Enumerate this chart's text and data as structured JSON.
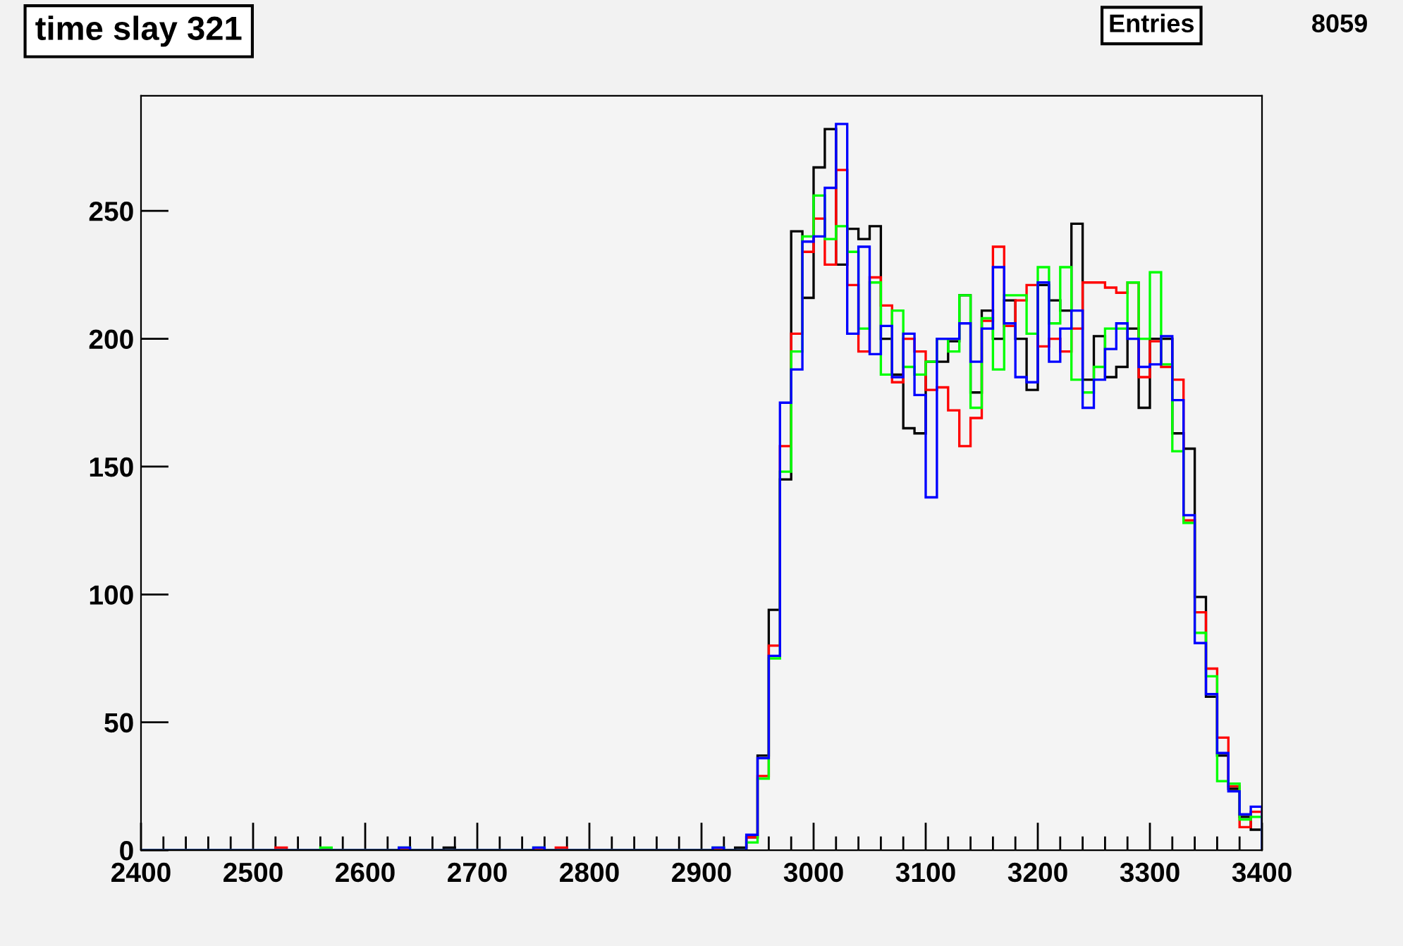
{
  "chart_data": {
    "type": "histogram",
    "title": "time slay 321",
    "annotations": [
      "Entries",
      "8059"
    ],
    "bins": [
      2400,
      2410,
      2420,
      2430,
      2440,
      2450,
      2460,
      2470,
      2480,
      2490,
      2500,
      2510,
      2520,
      2530,
      2540,
      2550,
      2560,
      2570,
      2580,
      2590,
      2600,
      2610,
      2620,
      2630,
      2640,
      2650,
      2660,
      2670,
      2680,
      2690,
      2700,
      2710,
      2720,
      2730,
      2740,
      2750,
      2760,
      2770,
      2780,
      2790,
      2800,
      2810,
      2820,
      2830,
      2840,
      2850,
      2860,
      2870,
      2880,
      2890,
      2900,
      2910,
      2920,
      2930,
      2940,
      2950,
      2960,
      2970,
      2980,
      2990,
      3000,
      3010,
      3020,
      3030,
      3040,
      3050,
      3060,
      3070,
      3080,
      3090,
      3100,
      3110,
      3120,
      3130,
      3140,
      3150,
      3160,
      3170,
      3180,
      3190,
      3200,
      3210,
      3220,
      3230,
      3240,
      3250,
      3260,
      3270,
      3280,
      3290,
      3300,
      3310,
      3320,
      3330,
      3340,
      3350,
      3360,
      3370,
      3380,
      3390,
      3400
    ],
    "series": [
      {
        "color": "#000000",
        "values": [
          0,
          0,
          0,
          0,
          0,
          0,
          0,
          0,
          0,
          0,
          0,
          0,
          0,
          0,
          0,
          0,
          0,
          0,
          0,
          0,
          0,
          0,
          0,
          0,
          0,
          0,
          0,
          1,
          0,
          0,
          0,
          0,
          0,
          0,
          0,
          0,
          0,
          0,
          0,
          0,
          0,
          0,
          0,
          0,
          0,
          0,
          0,
          0,
          0,
          0,
          0,
          0,
          0,
          1,
          5,
          37,
          94,
          145,
          242,
          216,
          267,
          282,
          229,
          243,
          239,
          244,
          200,
          186,
          165,
          163,
          191,
          191,
          199,
          217,
          179,
          211,
          200,
          215,
          200,
          180,
          221,
          215,
          211,
          245,
          184,
          201,
          185,
          189,
          204,
          173,
          200,
          200,
          163,
          157,
          99,
          60,
          37,
          24,
          13,
          8
        ]
      },
      {
        "color": "#ff0000",
        "values": [
          0,
          0,
          0,
          0,
          0,
          0,
          0,
          0,
          0,
          0,
          0,
          0,
          1,
          0,
          0,
          0,
          0,
          0,
          0,
          0,
          0,
          0,
          0,
          0,
          0,
          0,
          0,
          0,
          0,
          0,
          0,
          0,
          0,
          0,
          0,
          0,
          0,
          1,
          0,
          0,
          0,
          0,
          0,
          0,
          0,
          0,
          0,
          0,
          0,
          0,
          0,
          0,
          0,
          0,
          5,
          29,
          80,
          158,
          202,
          234,
          247,
          229,
          266,
          221,
          195,
          224,
          213,
          183,
          200,
          195,
          180,
          181,
          172,
          158,
          169,
          207,
          236,
          205,
          215,
          221,
          197,
          200,
          195,
          204,
          222,
          222,
          220,
          218,
          222,
          185,
          199,
          189,
          184,
          129,
          93,
          71,
          44,
          25,
          9,
          15
        ]
      },
      {
        "color": "#00ff00",
        "values": [
          0,
          0,
          0,
          0,
          0,
          0,
          0,
          0,
          0,
          0,
          0,
          0,
          0,
          0,
          0,
          0,
          1,
          0,
          0,
          0,
          0,
          0,
          0,
          1,
          0,
          0,
          0,
          0,
          0,
          0,
          0,
          0,
          0,
          0,
          0,
          1,
          0,
          0,
          0,
          0,
          0,
          0,
          0,
          0,
          0,
          0,
          0,
          0,
          0,
          0,
          0,
          1,
          0,
          0,
          3,
          28,
          75,
          148,
          195,
          240,
          256,
          239,
          244,
          234,
          204,
          222,
          186,
          211,
          189,
          186,
          191,
          200,
          195,
          217,
          173,
          208,
          188,
          217,
          217,
          202,
          228,
          206,
          228,
          184,
          179,
          189,
          204,
          204,
          222,
          200,
          226,
          190,
          156,
          128,
          85,
          68,
          27,
          26,
          12,
          13
        ]
      },
      {
        "color": "#0000ff",
        "values": [
          0,
          0,
          0,
          0,
          0,
          0,
          0,
          0,
          0,
          0,
          0,
          0,
          0,
          0,
          0,
          0,
          0,
          0,
          0,
          0,
          0,
          0,
          0,
          1,
          0,
          0,
          0,
          0,
          0,
          0,
          0,
          0,
          0,
          0,
          0,
          1,
          0,
          0,
          0,
          0,
          0,
          0,
          0,
          0,
          0,
          0,
          0,
          0,
          0,
          0,
          0,
          1,
          0,
          0,
          6,
          36,
          76,
          175,
          188,
          238,
          240,
          259,
          284,
          202,
          236,
          194,
          205,
          185,
          202,
          178,
          138,
          200,
          200,
          206,
          191,
          204,
          228,
          206,
          185,
          183,
          222,
          191,
          204,
          211,
          173,
          184,
          196,
          206,
          200,
          189,
          190,
          201,
          176,
          131,
          81,
          61,
          38,
          23,
          14,
          17
        ]
      }
    ],
    "xlim": [
      2400,
      3400
    ],
    "xticks": [
      2400,
      2500,
      2600,
      2700,
      2800,
      2900,
      3000,
      3100,
      3200,
      3300,
      3400
    ],
    "ylim": [
      0,
      295
    ],
    "yticks": [
      0,
      50,
      100,
      150,
      200,
      250
    ],
    "grid": false,
    "legend": false
  }
}
